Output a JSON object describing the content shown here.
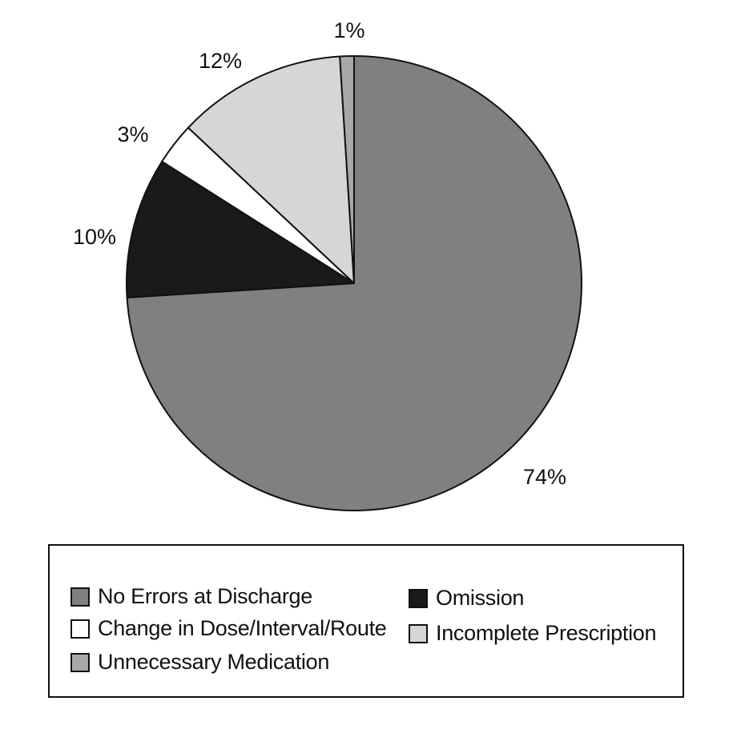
{
  "chart_data": {
    "type": "pie",
    "title": "",
    "start_angle_deg": 0,
    "direction": "clockwise",
    "slices": [
      {
        "name": "No Errors at Discharge",
        "value": 74,
        "label": "74%",
        "color": "#808080"
      },
      {
        "name": "Omission",
        "value": 10,
        "label": "10%",
        "color": "#1a1a1a"
      },
      {
        "name": "Change in Dose/Interval/Route",
        "value": 3,
        "label": "3%",
        "color": "#ffffff"
      },
      {
        "name": "Incomplete Prescription",
        "value": 12,
        "label": "12%",
        "color": "#d6d6d6"
      },
      {
        "name": "Unnecessary Medication",
        "value": 1,
        "label": "1%",
        "color": "#a8a8a8"
      }
    ],
    "legend": {
      "placement": "bottom",
      "columns": [
        [
          "No Errors at Discharge",
          "Change in Dose/Interval/Route",
          "Unnecessary Medication"
        ],
        [
          "Omission",
          "Incomplete Prescription"
        ]
      ]
    },
    "stroke_color": "#111111"
  }
}
